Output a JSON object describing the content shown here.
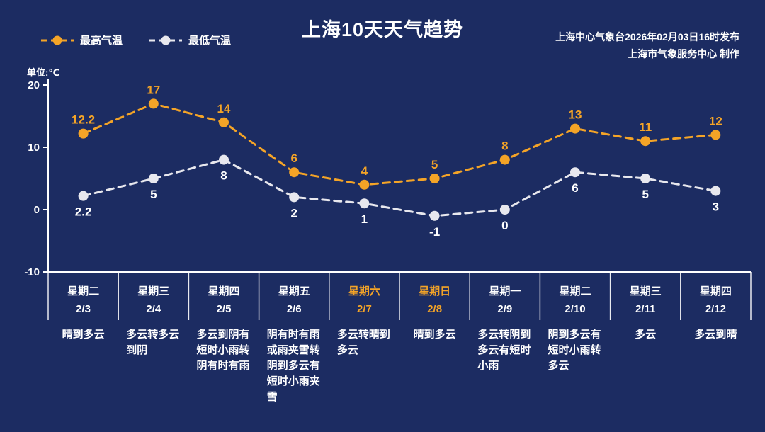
{
  "header": {
    "title": "上海10天天气趋势",
    "source_line1": "上海中心气象台2026年02月03日16时发布",
    "source_line2": "上海市气象服务中心  制作"
  },
  "unit_label": "单位:℃",
  "colors": {
    "background": "#1c2c62",
    "high": "#f4a427",
    "low": "#e8e8ee",
    "axis": "#ffffff",
    "text": "#ffffff",
    "weekend_text": "#f4a427"
  },
  "chart_data": {
    "type": "line",
    "title": "上海10天天气趋势",
    "categories": [
      "2/3",
      "2/4",
      "2/5",
      "2/6",
      "2/7",
      "2/8",
      "2/9",
      "2/10",
      "2/11",
      "2/12"
    ],
    "weekdays": [
      "星期二",
      "星期三",
      "星期四",
      "星期五",
      "星期六",
      "星期日",
      "星期一",
      "星期二",
      "星期三",
      "星期四"
    ],
    "weekend_indices": [
      4,
      5
    ],
    "series": [
      {
        "name": "最高气温",
        "color": "#f4a427",
        "values": [
          12.2,
          17,
          14,
          6,
          4,
          5,
          8,
          13,
          11,
          12
        ]
      },
      {
        "name": "最低气温",
        "color": "#e8e8ee",
        "values": [
          2.2,
          5,
          8,
          2,
          1,
          -1,
          0,
          6,
          5,
          3
        ]
      }
    ],
    "weather": [
      "晴到多云",
      "多云转多云到阴",
      "多云到阴有短时小雨转阴有时有雨",
      "阴有时有雨或雨夹雪转阴到多云有短时小雨夹雪",
      "多云转晴到多云",
      "晴到多云",
      "多云转阴到多云有短时小雨",
      "阴到多云有短时小雨转多云",
      "多云",
      "多云到晴"
    ],
    "ylim": [
      -10,
      20
    ],
    "yticks": [
      20,
      10,
      0,
      -10
    ],
    "grid": false,
    "legend_position": "top-left",
    "line_style": "dashed"
  }
}
